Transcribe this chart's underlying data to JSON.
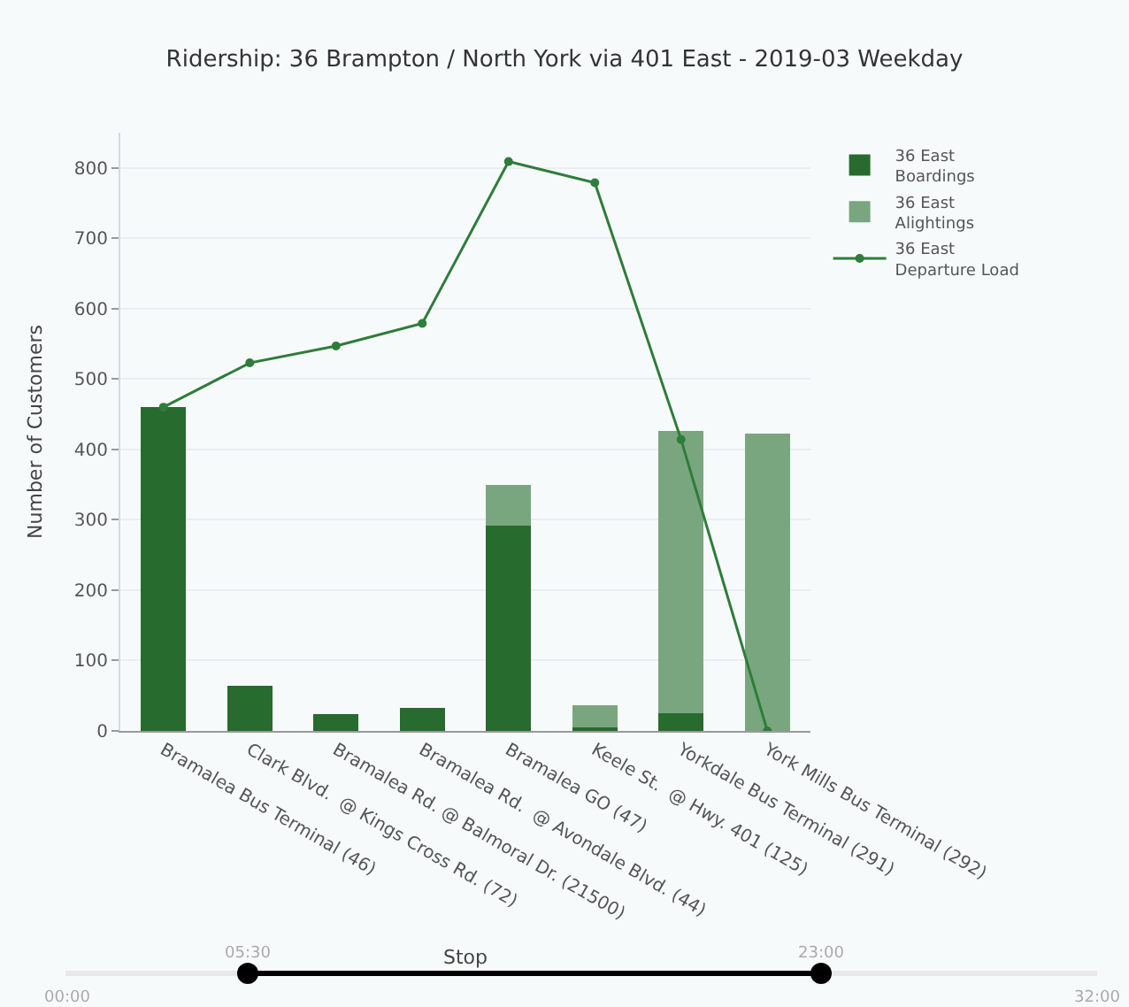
{
  "chart_data": {
    "type": "bar",
    "title": "Ridership: 36 Brampton / North York via 401 East - 2019-03 Weekday",
    "xlabel": "Stop",
    "ylabel": "Number of Customers",
    "categories": [
      "Bramalea Bus Terminal (46)",
      "Clark Blvd.  @ Kings Cross Rd. (72)",
      "Bramalea Rd. @ Balmoral Dr. (21500)",
      "Bramalea Rd.  @ Avondale Blvd. (44)",
      "Bramalea GO (47)",
      "Keele St.  @ Hwy. 401 (125)",
      "Yorkdale Bus Terminal (291)",
      "York Mills Bus Terminal (292)"
    ],
    "stacked": true,
    "series": [
      {
        "name": "36 East Boardings",
        "color": "#276b2e",
        "values": [
          460,
          64,
          24,
          33,
          292,
          5,
          25,
          0
        ]
      },
      {
        "name": "36 East Alightings",
        "color": "#7aa67f",
        "values": [
          0,
          0,
          0,
          0,
          58,
          32,
          401,
          423
        ]
      },
      {
        "name": "36 East Departure Load",
        "type": "line",
        "color": "#2e7d3a",
        "marker": "circle",
        "values": [
          460,
          523,
          547,
          579,
          809,
          779,
          414,
          0
        ]
      }
    ],
    "ylim": [
      0,
      850
    ],
    "yticks": [
      0,
      100,
      200,
      300,
      400,
      500,
      600,
      700,
      800
    ],
    "grid": "y",
    "legend": "top right",
    "annotations": [
      "05:30",
      "23:00",
      "00:00",
      "32:00"
    ]
  }
}
